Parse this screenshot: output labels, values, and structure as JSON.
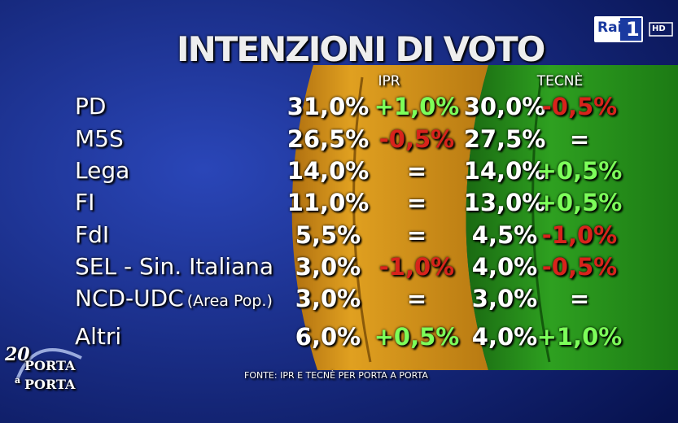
{
  "header": {
    "title": "INTENZIONI DI VOTO"
  },
  "channel_logo": {
    "name": "Rai",
    "number": "1",
    "quality": "HD"
  },
  "show_logo": {
    "anniversary": "20",
    "line1": "PORTA",
    "line2": "a",
    "line3": "PORTA"
  },
  "table": {
    "columns": [
      "IPR",
      "TECNÈ"
    ],
    "rows": [
      {
        "label": "PD",
        "cells": [
          "31,0%",
          "+1,0%",
          "30,0%",
          "-0,5%"
        ]
      },
      {
        "label": "M5S",
        "cells": [
          "26,5%",
          "-0,5%",
          "27,5%",
          "="
        ]
      },
      {
        "label": "Lega",
        "cells": [
          "14,0%",
          "=",
          "14,0%",
          "+0,5%"
        ]
      },
      {
        "label": "FI",
        "cells": [
          "11,0%",
          "=",
          "13,0%",
          "+0,5%"
        ]
      },
      {
        "label": "FdI",
        "cells": [
          "5,5%",
          "=",
          "4,5%",
          "-1,0%"
        ]
      },
      {
        "label": "SEL - Sin. Italiana",
        "cells": [
          "3,0%",
          "-1,0%",
          "4,0%",
          "-0,5%"
        ]
      },
      {
        "label": "NCD-UDC",
        "note": "(Area Pop.)",
        "cells": [
          "3,0%",
          "=",
          "3,0%",
          "="
        ]
      },
      {
        "label": "Altri",
        "cells": [
          "6,0%",
          "+0,5%",
          "4,0%",
          "+1,0%"
        ]
      }
    ]
  },
  "footer": {
    "source": "FONTE: IPR E TECNÈ PER PORTA A PORTA"
  }
}
